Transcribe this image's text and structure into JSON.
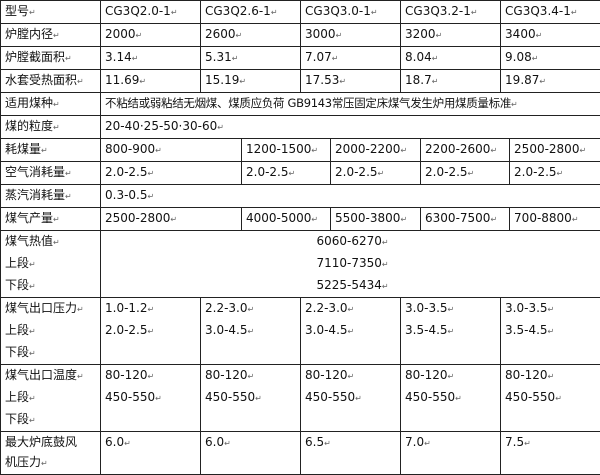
{
  "rows": {
    "model": {
      "label": "型号",
      "values": [
        "CG3Q2.0-1",
        "CG3Q2.6-1",
        "CG3Q3.0-1",
        "CG3Q3.2-1",
        "CG3Q3.4-1"
      ]
    },
    "inner_diameter": {
      "label": "炉膛内径",
      "values": [
        "2000",
        "2600",
        "3000",
        "3200",
        "3400"
      ]
    },
    "cross_section": {
      "label": "炉膛截面积",
      "values": [
        "3.14",
        "5.31",
        "7.07",
        "8.04",
        "9.08"
      ]
    },
    "water_jacket": {
      "label": "水套受热面积",
      "values": [
        "11.69",
        "15.19",
        "17.53",
        "18.7",
        "19.87"
      ]
    },
    "coal_type": {
      "label": "适用煤种",
      "value": "不粘结或弱粘结无烟煤、煤质应负荷 GB9143常压固定床煤气发生炉用煤质量标准"
    },
    "coal_size": {
      "label": "煤的粒度",
      "value": "20-40·25-50·30-60"
    },
    "coal_consumption": {
      "label": "耗煤量",
      "values": [
        "800-900",
        "1200-1500",
        "2000-2200",
        "2200-2600",
        "2500-2800"
      ]
    },
    "air_consumption": {
      "label": "空气消耗量",
      "values": [
        "2.0-2.5",
        "2.0-2.5",
        "2.0-2.5",
        "2.0-2.5",
        "2.0-2.5"
      ]
    },
    "steam_consumption": {
      "label": "蒸汽消耗量",
      "value": "0.3-0.5"
    },
    "gas_output": {
      "label": "煤气产量",
      "values": [
        "2500-2800",
        "4000-5000",
        "5500-3800",
        "6300-7500",
        "700-8800"
      ]
    },
    "heat_value": {
      "labels": [
        "煤气热值",
        "上段",
        "下段"
      ],
      "values": [
        "6060-6270",
        "7110-7350",
        "5225-5434"
      ]
    },
    "outlet_pressure": {
      "labels": [
        "煤气出口压力",
        "上段",
        "下段"
      ],
      "values": [
        [
          "1.0-1.2",
          "2.0-2.5"
        ],
        [
          "2.2-3.0",
          "3.0-4.5"
        ],
        [
          "2.2-3.0",
          "3.0-4.5"
        ],
        [
          "3.0-3.5",
          "3.5-4.5"
        ],
        [
          "3.0-3.5",
          "3.5-4.5"
        ]
      ]
    },
    "outlet_temperature": {
      "labels": [
        "煤气出口温度",
        "上段",
        "下段"
      ],
      "values": [
        [
          "80-120",
          "450-550"
        ],
        [
          "80-120",
          "450-550"
        ],
        [
          "80-120",
          "450-550"
        ],
        [
          "80-120",
          "450-550"
        ],
        [
          "80-120",
          "450-550"
        ]
      ]
    },
    "blower_pressure": {
      "labels": [
        "最大炉底鼓风",
        "机压力"
      ],
      "values": [
        "6.0",
        "6.0",
        "6.5",
        "7.0",
        "7.5"
      ]
    }
  }
}
